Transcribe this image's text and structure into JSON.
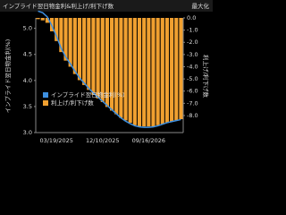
{
  "header": {
    "title": "インプライド翌日物金利&利上げ/利下げ数",
    "button": "最大化"
  },
  "chart_data": {
    "type": "bar-line",
    "categories": [
      null,
      null,
      null,
      null,
      "03/19/2025",
      null,
      null,
      null,
      null,
      null,
      null,
      null,
      null,
      null,
      "12/10/2025",
      null,
      null,
      null,
      null,
      null,
      null,
      null,
      null,
      null,
      "09/16/2026",
      null,
      null,
      null,
      null,
      null,
      null,
      null
    ],
    "ylabel": "インプライド翌日物金利(%)",
    "y2label": "利上げ/利下げ数",
    "ylim": [
      3.0,
      5.2
    ],
    "yticks": [
      {
        "value": 3.0,
        "label": "3.0"
      },
      {
        "value": 3.5,
        "label": "3.5"
      },
      {
        "value": 4.0,
        "label": "4.0"
      },
      {
        "value": 4.5,
        "label": "4.5"
      },
      {
        "value": 5.0,
        "label": "5.0"
      }
    ],
    "y2lim": [
      -9.4,
      0
    ],
    "y2ticks": [
      {
        "value": 0,
        "label": "0.0"
      },
      {
        "value": -1,
        "label": "-1.0"
      },
      {
        "value": -2,
        "label": "-2.0"
      },
      {
        "value": -3,
        "label": "-3.0"
      },
      {
        "value": -4,
        "label": "-4.0"
      },
      {
        "value": -5,
        "label": "-5.0"
      },
      {
        "value": -6,
        "label": "-6.0"
      },
      {
        "value": -7,
        "label": "-7.0"
      },
      {
        "value": -8,
        "label": "-8.0"
      }
    ],
    "series": [
      {
        "name": "インプライド翌日物金利(%)",
        "type": "line",
        "color": "#3d8fe0",
        "values": [
          5.33,
          5.3,
          5.22,
          5.05,
          4.85,
          4.62,
          4.45,
          4.32,
          4.18,
          4.05,
          3.95,
          3.85,
          3.76,
          3.68,
          3.6,
          3.52,
          3.44,
          3.36,
          3.28,
          3.22,
          3.17,
          3.13,
          3.11,
          3.1,
          3.1,
          3.11,
          3.13,
          3.16,
          3.19,
          3.21,
          3.23,
          3.25
        ]
      },
      {
        "name": "利上げ/利下げ数",
        "type": "bar",
        "axis": "y2",
        "color": "#f0a030",
        "values": [
          -0.1,
          -0.2,
          -0.4,
          -1.1,
          -1.9,
          -2.8,
          -3.5,
          -4.0,
          -4.6,
          -5.1,
          -5.5,
          -5.9,
          -6.3,
          -6.6,
          -6.9,
          -7.3,
          -7.6,
          -7.9,
          -8.2,
          -8.4,
          -8.6,
          -8.8,
          -8.9,
          -8.9,
          -8.9,
          -8.9,
          -8.8,
          -8.7,
          -8.6,
          -8.5,
          -8.4,
          -8.3
        ]
      }
    ]
  }
}
